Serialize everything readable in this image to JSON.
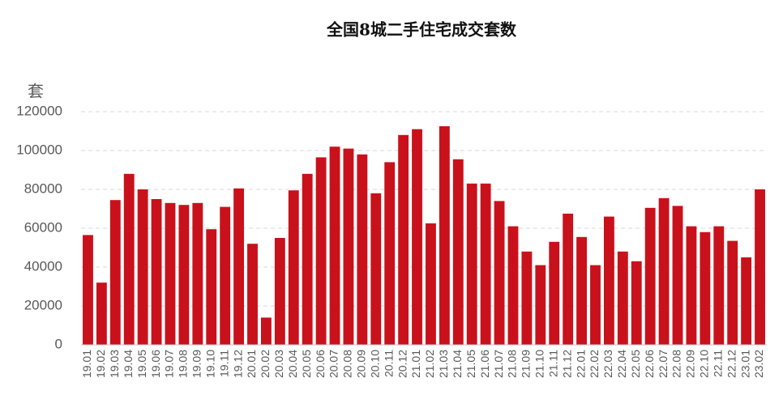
{
  "chart_data": {
    "type": "bar",
    "title": "全国8城二手住宅成交套数",
    "y_label": "套",
    "categories": [
      "19.01",
      "19.02",
      "19.03",
      "19.04",
      "19.05",
      "19.06",
      "19.07",
      "19.08",
      "19.09",
      "19.10",
      "19.11",
      "19.12",
      "20.01",
      "20.02",
      "20.03",
      "20.04",
      "20.05",
      "20.06",
      "20.07",
      "20.08",
      "20.09",
      "20.10",
      "20.11",
      "20.12",
      "21.01",
      "21.02",
      "21.03",
      "21.04",
      "21.05",
      "21.06",
      "21.07",
      "21.08",
      "21.09",
      "21.10",
      "21.11",
      "21.12",
      "22.01",
      "22.02",
      "22.03",
      "22.04",
      "22.05",
      "22.06",
      "22.07",
      "22.08",
      "22.09",
      "22.10",
      "22.11",
      "22.12",
      "23.01",
      "23.02"
    ],
    "values": [
      56500,
      32000,
      74500,
      88000,
      80000,
      75000,
      73000,
      72000,
      73000,
      59500,
      71000,
      80500,
      52000,
      14000,
      55000,
      79500,
      88000,
      96500,
      102000,
      101000,
      98000,
      78000,
      94000,
      108000,
      111000,
      62500,
      112500,
      95500,
      83000,
      83000,
      74000,
      61000,
      48000,
      41000,
      53000,
      67500,
      55500,
      41000,
      66000,
      48000,
      43000,
      70500,
      75500,
      71500,
      61000,
      58000,
      61000,
      53500,
      45000,
      80000
    ],
    "color": "#c9111b",
    "ylim": [
      0,
      120000
    ],
    "yticks": [
      0,
      20000,
      40000,
      60000,
      80000,
      100000,
      120000
    ],
    "grid": true
  }
}
